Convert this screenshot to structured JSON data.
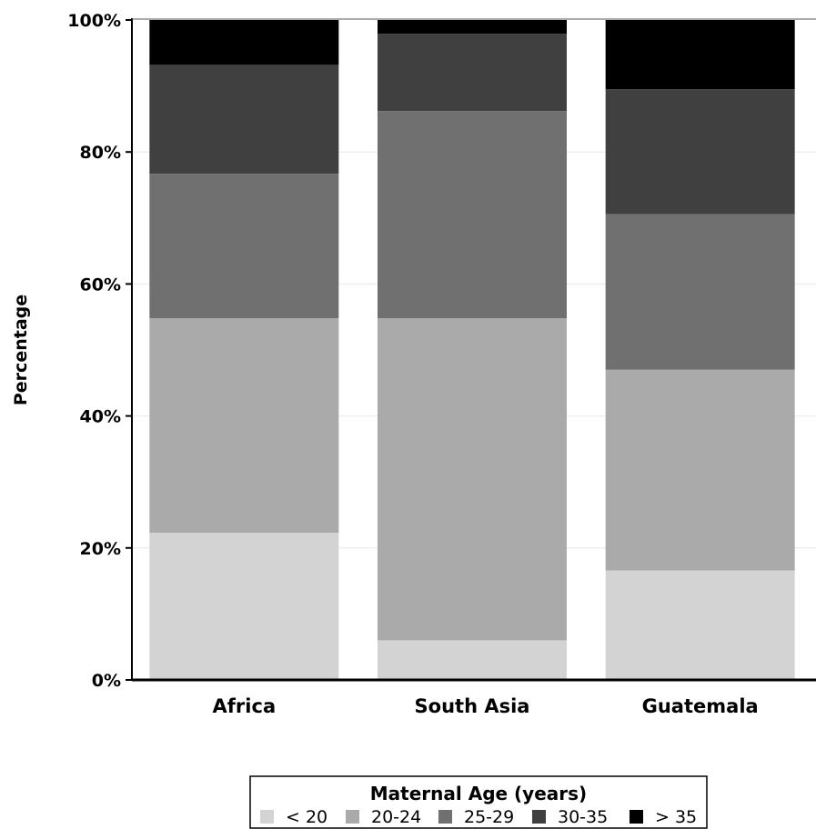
{
  "chart_data": {
    "type": "bar",
    "stacked": true,
    "normalized": true,
    "ylabel": "Percentage",
    "ylim": [
      0,
      100
    ],
    "yticks": [
      "0%",
      "20%",
      "40%",
      "60%",
      "80%",
      "100%"
    ],
    "grid": true,
    "categories": [
      "Africa",
      "South Asia",
      "Guatemala"
    ],
    "legend": {
      "title": "Maternal Age (years)",
      "placement": "bottom-center"
    },
    "series": [
      {
        "name": "< 20",
        "color": "#d3d3d3",
        "values": [
          22.3,
          6.0,
          16.6
        ]
      },
      {
        "name": "20-24",
        "color": "#aaaaaa",
        "values": [
          32.5,
          48.8,
          30.4
        ]
      },
      {
        "name": "25-29",
        "color": "#707070",
        "values": [
          21.9,
          31.4,
          23.6
        ]
      },
      {
        "name": "30-35",
        "color": "#404040",
        "values": [
          16.5,
          11.7,
          18.9
        ]
      },
      {
        "name": "> 35",
        "color": "#000000",
        "values": [
          6.8,
          2.1,
          10.5
        ]
      }
    ]
  }
}
